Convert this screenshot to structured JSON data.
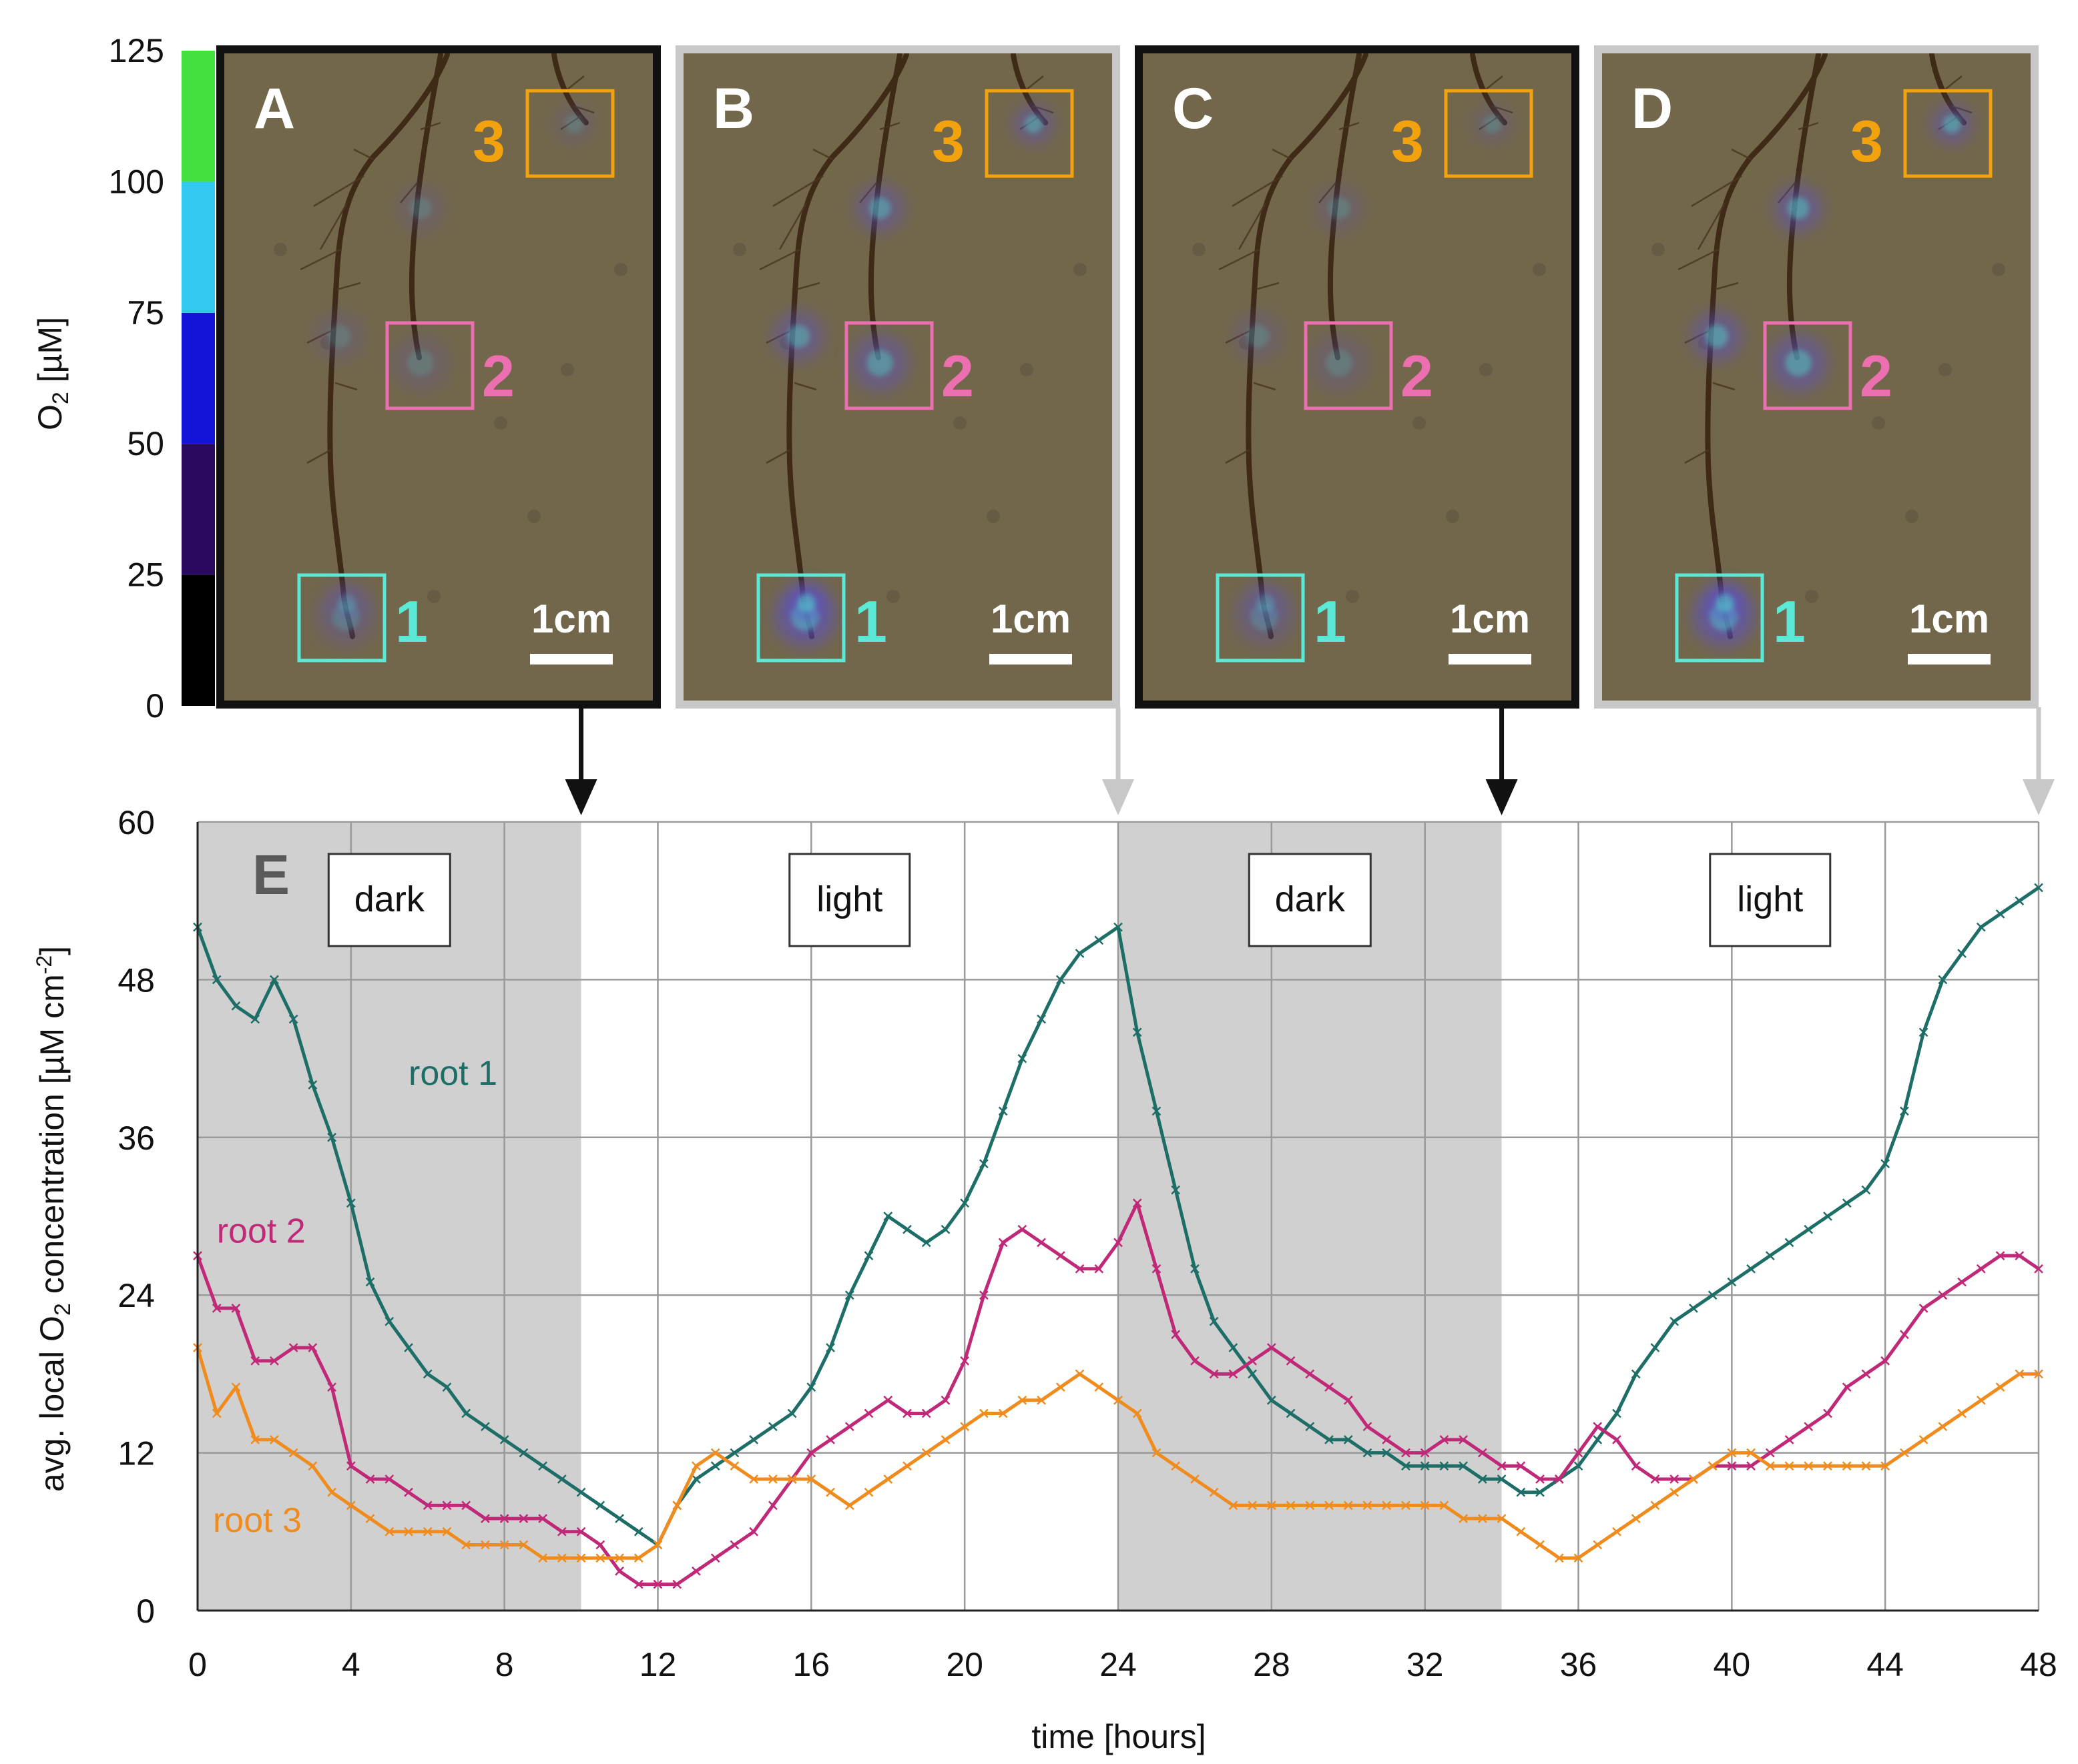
{
  "colorbar": {
    "label_main": "O",
    "label_sub": "2",
    "label_unit": " [µM]",
    "ticks": [
      "0",
      "25",
      "50",
      "75",
      "100",
      "125"
    ],
    "tick_values": [
      0,
      25,
      50,
      75,
      100,
      125
    ],
    "segments": [
      {
        "from": 0,
        "to": 25,
        "color": "#000000"
      },
      {
        "from": 25,
        "to": 50,
        "color": "#2a0a5e"
      },
      {
        "from": 50,
        "to": 75,
        "color": "#1414d8"
      },
      {
        "from": 75,
        "to": 100,
        "color": "#33c8f0"
      },
      {
        "from": 100,
        "to": 125,
        "color": "#44e040"
      }
    ]
  },
  "panels": [
    {
      "letter": "A",
      "frame": "black",
      "regions": [
        "1",
        "2",
        "3"
      ],
      "scale_label": "1cm",
      "time_h": 10,
      "glow": 0.45
    },
    {
      "letter": "B",
      "frame": "gray",
      "regions": [
        "1",
        "2",
        "3"
      ],
      "scale_label": "1cm",
      "time_h": 24,
      "glow": 1.0
    },
    {
      "letter": "C",
      "frame": "black",
      "regions": [
        "1",
        "2",
        "3"
      ],
      "scale_label": "1cm",
      "time_h": 34,
      "glow": 0.5
    },
    {
      "letter": "D",
      "frame": "gray",
      "regions": [
        "1",
        "2",
        "3"
      ],
      "scale_label": "1cm",
      "time_h": 48,
      "glow": 1.1
    }
  ],
  "colors": {
    "root1": "#1e6e68",
    "root2": "#c02878",
    "root3": "#f08c1e",
    "region1": "#5ce8d6",
    "region2": "#ec6fb0",
    "region3": "#f2a20c",
    "dark_band": "#d0d0d0",
    "frame_black": "#111111",
    "frame_gray": "#c8c8c8"
  },
  "chart_data": {
    "type": "line",
    "panel_letter": "E",
    "xlabel": "time [hours]",
    "ylabel_parts": [
      "avg. local O",
      "2",
      " concentration [µM cm",
      "-2",
      "]"
    ],
    "xlim": [
      0,
      48
    ],
    "ylim": [
      0,
      60
    ],
    "xticks": [
      0,
      4,
      8,
      12,
      16,
      20,
      24,
      28,
      32,
      36,
      40,
      44,
      48
    ],
    "yticks": [
      0,
      12,
      24,
      36,
      48,
      60
    ],
    "periods": [
      {
        "label": "dark",
        "start": 0,
        "end": 10,
        "shaded": true
      },
      {
        "label": "light",
        "start": 10,
        "end": 24,
        "shaded": false
      },
      {
        "label": "dark",
        "start": 24,
        "end": 34,
        "shaded": true
      },
      {
        "label": "light",
        "start": 34,
        "end": 48,
        "shaded": false
      }
    ],
    "series": [
      {
        "name": "root 1",
        "key": "root1",
        "x": [
          0,
          0.5,
          1,
          1.5,
          2,
          2.5,
          3,
          3.5,
          4,
          4.5,
          5,
          5.5,
          6,
          6.5,
          7,
          7.5,
          8,
          8.5,
          9,
          9.5,
          10,
          10.5,
          11,
          11.5,
          12,
          12.5,
          13,
          13.5,
          14,
          14.5,
          15,
          15.5,
          16,
          16.5,
          17,
          17.5,
          18,
          18.5,
          19,
          19.5,
          20,
          20.5,
          21,
          21.5,
          22,
          22.5,
          23,
          23.5,
          24,
          24.5,
          25,
          25.5,
          26,
          26.5,
          27,
          27.5,
          28,
          28.5,
          29,
          29.5,
          30,
          30.5,
          31,
          31.5,
          32,
          32.5,
          33,
          33.5,
          34,
          34.5,
          35,
          35.5,
          36,
          36.5,
          37,
          37.5,
          38,
          38.5,
          39,
          39.5,
          40,
          40.5,
          41,
          41.5,
          42,
          42.5,
          43,
          43.5,
          44,
          44.5,
          45,
          45.5,
          46,
          46.5,
          47,
          47.5,
          48
        ],
        "y": [
          52,
          48,
          46,
          45,
          48,
          45,
          40,
          36,
          31,
          25,
          22,
          20,
          18,
          17,
          15,
          14,
          13,
          12,
          11,
          10,
          9,
          8,
          7,
          6,
          5,
          8,
          10,
          11,
          12,
          13,
          14,
          15,
          17,
          20,
          24,
          27,
          30,
          29,
          28,
          29,
          31,
          34,
          38,
          42,
          45,
          48,
          50,
          51,
          52,
          44,
          38,
          32,
          26,
          22,
          20,
          18,
          16,
          15,
          14,
          13,
          13,
          12,
          12,
          11,
          11,
          11,
          11,
          10,
          10,
          9,
          9,
          10,
          11,
          13,
          15,
          18,
          20,
          22,
          23,
          24,
          25,
          26,
          27,
          28,
          29,
          30,
          31,
          32,
          34,
          38,
          44,
          48,
          50,
          52,
          53,
          54,
          55
        ]
      },
      {
        "name": "root 2",
        "key": "root2",
        "x": [
          0,
          0.5,
          1,
          1.5,
          2,
          2.5,
          3,
          3.5,
          4,
          4.5,
          5,
          5.5,
          6,
          6.5,
          7,
          7.5,
          8,
          8.5,
          9,
          9.5,
          10,
          10.5,
          11,
          11.5,
          12,
          12.5,
          13,
          13.5,
          14,
          14.5,
          15,
          15.5,
          16,
          16.5,
          17,
          17.5,
          18,
          18.5,
          19,
          19.5,
          20,
          20.5,
          21,
          21.5,
          22,
          22.5,
          23,
          23.5,
          24,
          24.5,
          25,
          25.5,
          26,
          26.5,
          27,
          27.5,
          28,
          28.5,
          29,
          29.5,
          30,
          30.5,
          31,
          31.5,
          32,
          32.5,
          33,
          33.5,
          34,
          34.5,
          35,
          35.5,
          36,
          36.5,
          37,
          37.5,
          38,
          38.5,
          39,
          39.5,
          40,
          40.5,
          41,
          41.5,
          42,
          42.5,
          43,
          43.5,
          44,
          44.5,
          45,
          45.5,
          46,
          46.5,
          47,
          47.5,
          48
        ],
        "y": [
          27,
          23,
          23,
          19,
          19,
          20,
          20,
          17,
          11,
          10,
          10,
          9,
          8,
          8,
          8,
          7,
          7,
          7,
          7,
          6,
          6,
          5,
          3,
          2,
          2,
          2,
          3,
          4,
          5,
          6,
          8,
          10,
          12,
          13,
          14,
          15,
          16,
          15,
          15,
          16,
          19,
          24,
          28,
          29,
          28,
          27,
          26,
          26,
          28,
          31,
          26,
          21,
          19,
          18,
          18,
          19,
          20,
          19,
          18,
          17,
          16,
          14,
          13,
          12,
          12,
          13,
          13,
          12,
          11,
          11,
          10,
          10,
          12,
          14,
          13,
          11,
          10,
          10,
          10,
          11,
          11,
          11,
          12,
          13,
          14,
          15,
          17,
          18,
          19,
          21,
          23,
          24,
          25,
          26,
          27,
          27,
          26
        ]
      },
      {
        "name": "root 3",
        "key": "root3",
        "x": [
          0,
          0.5,
          1,
          1.5,
          2,
          2.5,
          3,
          3.5,
          4,
          4.5,
          5,
          5.5,
          6,
          6.5,
          7,
          7.5,
          8,
          8.5,
          9,
          9.5,
          10,
          10.5,
          11,
          11.5,
          12,
          12.5,
          13,
          13.5,
          14,
          14.5,
          15,
          15.5,
          16,
          16.5,
          17,
          17.5,
          18,
          18.5,
          19,
          19.5,
          20,
          20.5,
          21,
          21.5,
          22,
          22.5,
          23,
          23.5,
          24,
          24.5,
          25,
          25.5,
          26,
          26.5,
          27,
          27.5,
          28,
          28.5,
          29,
          29.5,
          30,
          30.5,
          31,
          31.5,
          32,
          32.5,
          33,
          33.5,
          34,
          34.5,
          35,
          35.5,
          36,
          36.5,
          37,
          37.5,
          38,
          38.5,
          39,
          39.5,
          40,
          40.5,
          41,
          41.5,
          42,
          42.5,
          43,
          43.5,
          44,
          44.5,
          45,
          45.5,
          46,
          46.5,
          47,
          47.5,
          48
        ],
        "y": [
          20,
          15,
          17,
          13,
          13,
          12,
          11,
          9,
          8,
          7,
          6,
          6,
          6,
          6,
          5,
          5,
          5,
          5,
          4,
          4,
          4,
          4,
          4,
          4,
          5,
          8,
          11,
          12,
          11,
          10,
          10,
          10,
          10,
          9,
          8,
          9,
          10,
          11,
          12,
          13,
          14,
          15,
          15,
          16,
          16,
          17,
          18,
          17,
          16,
          15,
          12,
          11,
          10,
          9,
          8,
          8,
          8,
          8,
          8,
          8,
          8,
          8,
          8,
          8,
          8,
          8,
          7,
          7,
          7,
          6,
          5,
          4,
          4,
          5,
          6,
          7,
          8,
          9,
          10,
          11,
          12,
          12,
          11,
          11,
          11,
          11,
          11,
          11,
          11,
          12,
          13,
          14,
          15,
          16,
          17,
          18,
          18
        ]
      }
    ],
    "series_labels": [
      {
        "key": "root1",
        "text": "root 1",
        "x": 5.5,
        "y": 40
      },
      {
        "key": "root2",
        "text": "root 2",
        "x": 0.5,
        "y": 28
      },
      {
        "key": "root3",
        "text": "root 3",
        "x": 0.4,
        "y": 6
      }
    ]
  }
}
